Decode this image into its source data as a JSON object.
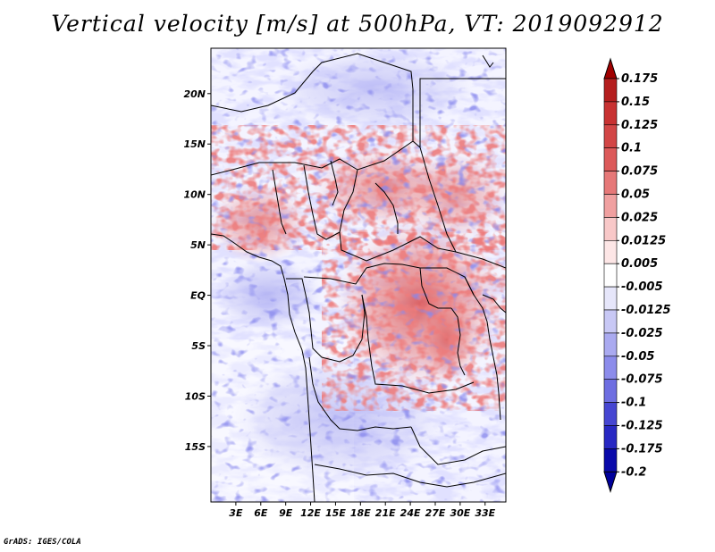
{
  "title": "Vertical velocity [m/s] at 500hPa, VT: 2019092912",
  "credit": "GrADS: IGES/COLA",
  "map": {
    "lon_range": [
      0,
      35.5
    ],
    "lat_range": [
      -20.5,
      24.5
    ],
    "lat_labels": [
      "20N",
      "15N",
      "10N",
      "5N",
      "EQ",
      "5S",
      "10S",
      "15S"
    ],
    "lat_values": [
      20,
      15,
      10,
      5,
      0,
      -5,
      -10,
      -15
    ],
    "lon_labels": [
      "3E",
      "6E",
      "9E",
      "12E",
      "15E",
      "18E",
      "21E",
      "24E",
      "27E",
      "30E",
      "33E"
    ],
    "lon_values": [
      3,
      6,
      9,
      12,
      15,
      18,
      21,
      24,
      27,
      30,
      33
    ]
  },
  "colorbar": {
    "labels": [
      "0.175",
      "0.15",
      "0.125",
      "0.1",
      "0.075",
      "0.05",
      "0.025",
      "0.0125",
      "0.005",
      "-0.005",
      "-0.0125",
      "-0.025",
      "-0.05",
      "-0.075",
      "-0.1",
      "-0.125",
      "-0.175",
      "-0.2"
    ],
    "colors": [
      "#a00000",
      "#b41e1e",
      "#c83232",
      "#d24646",
      "#dc5a5a",
      "#e67878",
      "#f0a0a0",
      "#f8c8c8",
      "#fde6e6",
      "#ffffff",
      "#e6e6fa",
      "#c8c8f5",
      "#aaaaf0",
      "#8c8ceb",
      "#6e6ee1",
      "#4646d2",
      "#2828c3",
      "#0a0aaa",
      "#00009b"
    ]
  }
}
